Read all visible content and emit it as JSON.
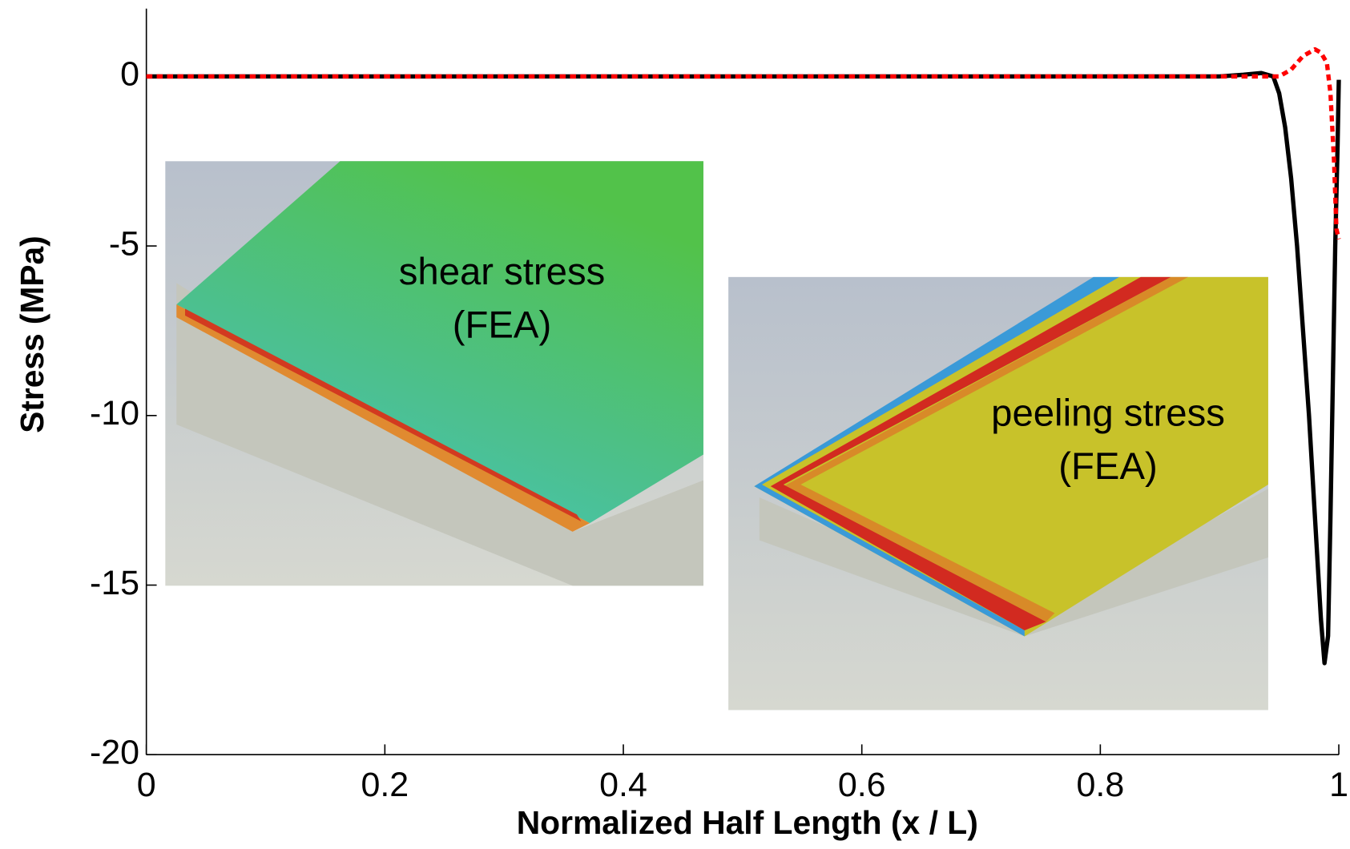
{
  "chart_data": {
    "type": "line",
    "x_label": "Normalized Half Length (x / L)",
    "y_label": "Stress (MPa)",
    "xlim": [
      0,
      1
    ],
    "xticks": [
      0,
      0.2,
      0.4,
      0.6,
      0.8,
      1
    ],
    "ylim": [
      -20,
      2
    ],
    "yticks": [
      0,
      -5,
      -10,
      -15,
      -20
    ],
    "annotations": [
      "shear stress",
      "(FEA)",
      "peeling stress",
      "(FEA)"
    ],
    "series": [
      {
        "color": "#000000",
        "style": "solid",
        "x": [
          0,
          0.9,
          0.92,
          0.935,
          0.945,
          0.95,
          0.955,
          0.96,
          0.965,
          0.97,
          0.975,
          0.98,
          0.985,
          0.988,
          0.991,
          0.993,
          0.995,
          0.997,
          0.999,
          1.0
        ],
        "values": [
          0,
          0,
          0.05,
          0.1,
          0,
          -0.5,
          -1.5,
          -3,
          -5,
          -7.5,
          -10,
          -13,
          -16,
          -17.3,
          -16.5,
          -13,
          -9,
          -5,
          -2,
          -0.1
        ]
      },
      {
        "color": "#ff0000",
        "style": "dotted",
        "x": [
          0,
          0.9,
          0.95,
          0.96,
          0.97,
          0.98,
          0.985,
          0.99,
          0.993,
          0.996,
          0.998,
          1.0
        ],
        "values": [
          0,
          0,
          0,
          0.2,
          0.6,
          0.8,
          0.7,
          0.4,
          -0.5,
          -2.5,
          -4.5,
          -4.8
        ]
      }
    ]
  }
}
